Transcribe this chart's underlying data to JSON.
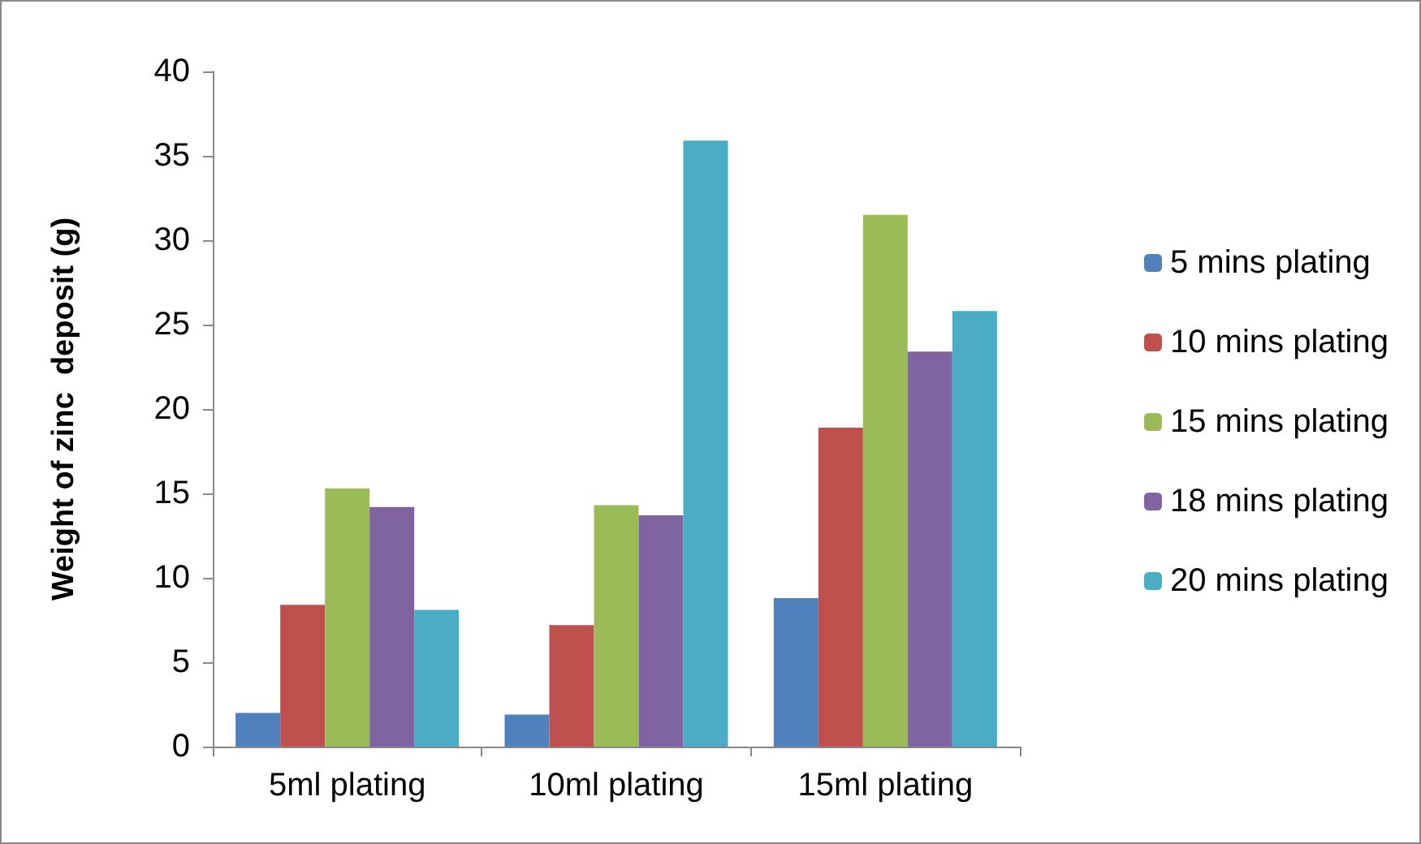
{
  "chart_data": {
    "type": "bar",
    "ylabel": "Weight of zinc  deposit (g)",
    "categories": [
      "5ml plating",
      "10ml plating",
      "15ml plating"
    ],
    "series": [
      {
        "name": "5 mins plating",
        "color": "#4f81bd",
        "values": [
          2.0,
          1.9,
          8.8
        ]
      },
      {
        "name": "10 mins plating",
        "color": "#c0504d",
        "values": [
          8.4,
          7.2,
          18.9
        ]
      },
      {
        "name": "15 mins plating",
        "color": "#9bbb59",
        "values": [
          15.3,
          14.3,
          31.5
        ]
      },
      {
        "name": "18 mins plating",
        "color": "#8064a2",
        "values": [
          14.2,
          13.7,
          23.4
        ]
      },
      {
        "name": "20 mins plating",
        "color": "#4bacc6",
        "values": [
          8.1,
          35.9,
          25.8
        ]
      }
    ],
    "ylim": [
      0,
      40
    ],
    "yticks": [
      0,
      5,
      10,
      15,
      20,
      25,
      30,
      35,
      40
    ],
    "grid": false,
    "legend": "right"
  }
}
